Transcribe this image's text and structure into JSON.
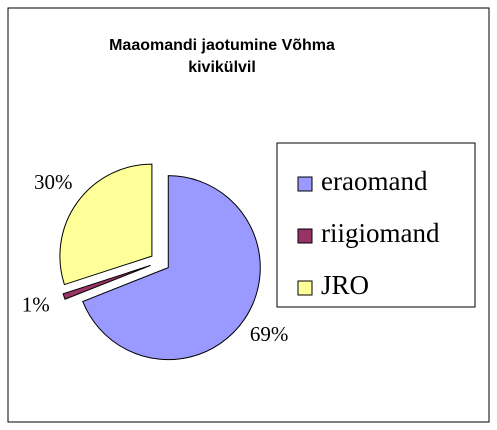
{
  "chart_data": {
    "type": "pie",
    "title_lines": [
      "Maaomandi jaotumine Võhma",
      "kivikülvil"
    ],
    "categories": [
      "eraomand",
      "riigiomand",
      "JRO"
    ],
    "values": [
      69,
      1,
      30
    ],
    "value_labels": [
      "69%",
      "1%",
      "30%"
    ],
    "colors": [
      "#9999ff",
      "#993366",
      "#ffff99"
    ],
    "legend": "right"
  }
}
